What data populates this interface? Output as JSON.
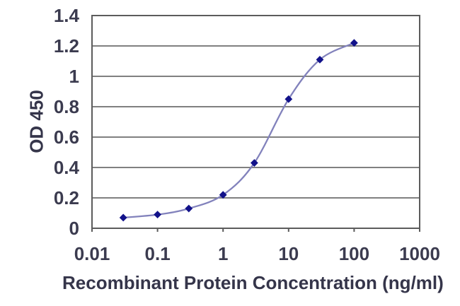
{
  "chart_data": {
    "type": "line",
    "title": "",
    "xlabel": "Recombinant Protein Concentration (ng/ml)",
    "ylabel": "OD 450",
    "xscale": "log",
    "xlim": [
      0.01,
      1000
    ],
    "ylim": [
      0,
      1.4
    ],
    "grid": true,
    "legend": "none",
    "marker": "diamond",
    "x": [
      0.03,
      0.1,
      0.3,
      1,
      3,
      10,
      30,
      100
    ],
    "y": [
      0.07,
      0.09,
      0.13,
      0.22,
      0.43,
      0.85,
      1.11,
      1.22
    ],
    "x_tick_values": [
      0.01,
      0.1,
      1,
      10,
      100,
      1000
    ],
    "x_tick_labels": [
      "0.01",
      "0.1",
      "1",
      "10",
      "100",
      "1000"
    ],
    "y_tick_values": [
      0,
      0.2,
      0.4,
      0.6,
      0.8,
      1,
      1.2,
      1.4
    ],
    "y_tick_labels": [
      "0",
      "0.2",
      "0.4",
      "0.6",
      "0.8",
      "1",
      "1.2",
      "1.4"
    ],
    "colors": {
      "line": "#8282bc",
      "marker": "#12128a",
      "grid": "#6e6e6e",
      "frame": "#5c5c5c",
      "text": "#3b3b4f",
      "background": "#ffffff"
    }
  }
}
